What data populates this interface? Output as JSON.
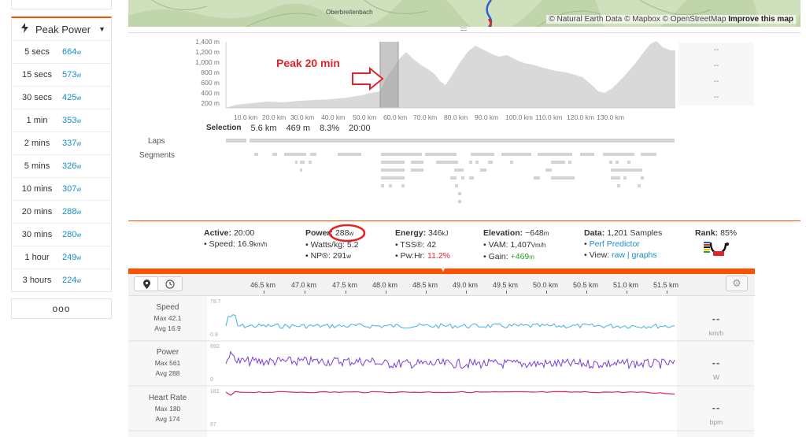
{
  "sidebar": {
    "dropdown_label": "Peak Power",
    "rows": [
      {
        "duration": "5 secs",
        "value": "664",
        "unit": "w"
      },
      {
        "duration": "15 secs",
        "value": "573",
        "unit": "w"
      },
      {
        "duration": "30 secs",
        "value": "425",
        "unit": "w"
      },
      {
        "duration": "1 min",
        "value": "353",
        "unit": "w"
      },
      {
        "duration": "2 mins",
        "value": "337",
        "unit": "w"
      },
      {
        "duration": "5 mins",
        "value": "326",
        "unit": "w"
      },
      {
        "duration": "10 mins",
        "value": "307",
        "unit": "w"
      },
      {
        "duration": "20 mins",
        "value": "288",
        "unit": "w"
      },
      {
        "duration": "30 mins",
        "value": "280",
        "unit": "w"
      },
      {
        "duration": "1 hour",
        "value": "249",
        "unit": "w"
      },
      {
        "duration": "3 hours",
        "value": "224",
        "unit": "w"
      }
    ],
    "more_label": "ooo"
  },
  "map": {
    "place": "Oberbreitenbach",
    "attribution": "© Natural Earth Data © Mapbox © OpenStreetMap",
    "improve_link": "Improve this map"
  },
  "elevation": {
    "y_ticks": [
      "1,400 m",
      "1,200 m",
      "1,000 m",
      "800 m",
      "600 m",
      "400 m",
      "200 m"
    ],
    "x_ticks": [
      "10.0 km",
      "20.0 km",
      "30.0 km",
      "40.0 km",
      "50.0 km",
      "60.0 km",
      "70.0 km",
      "80.0 km",
      "90.0 km",
      "100.0 km",
      "110.0 km",
      "120.0 km",
      "130.0 km"
    ],
    "right_cells": [
      "--",
      "--",
      "--",
      "--"
    ],
    "annotation": "Peak 20 min",
    "selection": {
      "label": "Selection",
      "distance": "5.6 km",
      "elevation": "469 m",
      "grade": "8.3%",
      "time": "20:00"
    },
    "laps_label": "Laps",
    "segments_label": "Segments"
  },
  "stats": {
    "active": {
      "label": "Active:",
      "value": "20:00",
      "speed_label": "Speed:",
      "speed": "16.9",
      "speed_unit": "km/h"
    },
    "power": {
      "label": "Power:",
      "value": "288",
      "unit": "w",
      "wkg_label": "Watts/kg:",
      "wkg": "5.2",
      "np_label": "NP®:",
      "np": "291",
      "np_unit": "w"
    },
    "energy": {
      "label": "Energy:",
      "value": "346",
      "unit": "kJ",
      "tss_label": "TSS®:",
      "tss": "42",
      "pwhr_label": "Pw:Hr:",
      "pwhr": "11.2%"
    },
    "elevation": {
      "label": "Elevation:",
      "value": "~648",
      "unit": "m",
      "vam_label": "VAM:",
      "vam": "1,407",
      "vam_unit": "Vm/h",
      "gain_label": "Gain:",
      "gain": "+469",
      "gain_unit": "m"
    },
    "data": {
      "label": "Data:",
      "value": "1,201 Samples",
      "perf": "Perf Predictor",
      "view_label": "View:",
      "raw": "raw",
      "sep": "|",
      "graphs": "graphs"
    },
    "rank": {
      "label": "Rank:",
      "value": "85%"
    }
  },
  "streams": {
    "x_ticks": [
      "46.5 km",
      "47.0 km",
      "47.5 km",
      "48.0 km",
      "48.5 km",
      "49.0 km",
      "49.5 km",
      "50.0 km",
      "50.5 km",
      "51.0 km",
      "51.5 km"
    ],
    "speed": {
      "label": "Speed",
      "max": "Max 42.1",
      "avg": "Avg 16.9",
      "top": "78.7",
      "bottom": "0.9",
      "current": "--",
      "unit": "km/h",
      "color": "#3db2e0"
    },
    "power": {
      "label": "Power",
      "max": "Max 561",
      "avg": "Avg 288",
      "top": "692",
      "bottom": "0",
      "current": "--",
      "unit": "W",
      "color": "#7b3fd6"
    },
    "heartrate": {
      "label": "Heart Rate",
      "max": "Max 180",
      "avg": "Avg 174",
      "top": "181",
      "bottom": "87",
      "current": "--",
      "unit": "bpm",
      "color": "#e0245e"
    }
  },
  "colors": {
    "accent": "#fc5200",
    "link": "#1a8dc7",
    "annotation": "#e0252a"
  }
}
